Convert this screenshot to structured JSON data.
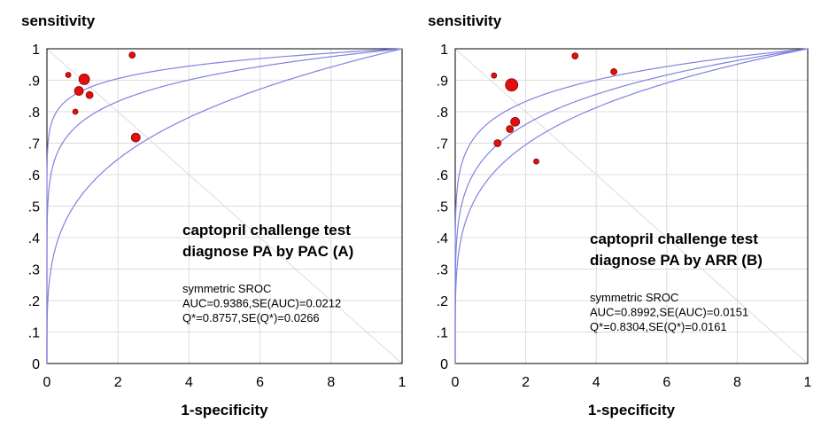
{
  "colors": {
    "curve": "#8080e0",
    "point": "#e01010",
    "point_stroke": "#900000",
    "grid": "#dcdcdc",
    "frame": "#000000"
  },
  "chart_data": [
    {
      "type": "scatter",
      "ylabel": "sensitivity",
      "xlabel": "1-specificity",
      "ylim": [
        0,
        1
      ],
      "y_ticks": [
        "0",
        ".1",
        ".2",
        ".3",
        ".4",
        ".5",
        ".6",
        ".7",
        ".8",
        ".9",
        "1"
      ],
      "x_ticks": [
        "0",
        "2",
        "4",
        "6",
        "8",
        "1"
      ],
      "grid": true,
      "annotation": {
        "title_lines": [
          "captopril challenge test",
          "diagnose PA by PAC (A)"
        ],
        "stats_lines": [
          "symmetric SROC",
          "AUC=0.9386,SE(AUC)=0.0212",
          "Q*=0.8757,SE(Q*)=0.0266"
        ]
      },
      "points": [
        {
          "x": 0.06,
          "y": 0.917,
          "size": 3
        },
        {
          "x": 0.08,
          "y": 0.8,
          "size": 3
        },
        {
          "x": 0.09,
          "y": 0.866,
          "size": 5
        },
        {
          "x": 0.105,
          "y": 0.903,
          "size": 6
        },
        {
          "x": 0.12,
          "y": 0.853,
          "size": 4
        },
        {
          "x": 0.24,
          "y": 0.98,
          "size": 3.5
        },
        {
          "x": 0.25,
          "y": 0.718,
          "size": 5
        }
      ]
    },
    {
      "type": "scatter",
      "ylabel": "sensitivity",
      "xlabel": "1-specificity",
      "ylim": [
        0,
        1
      ],
      "y_ticks": [
        "0",
        ".1",
        ".2",
        ".3",
        ".4",
        ".5",
        ".6",
        ".7",
        ".8",
        ".9",
        "1"
      ],
      "x_ticks": [
        "0",
        "2",
        "4",
        "6",
        "8",
        "1"
      ],
      "grid": true,
      "annotation": {
        "title_lines": [
          "captopril challenge test",
          "diagnose PA by ARR (B)"
        ],
        "stats_lines": [
          "symmetric SROC",
          "AUC=0.8992,SE(AUC)=0.0151",
          "Q*=0.8304,SE(Q*)=0.0161"
        ]
      },
      "points": [
        {
          "x": 0.11,
          "y": 0.915,
          "size": 3
        },
        {
          "x": 0.12,
          "y": 0.7,
          "size": 4
        },
        {
          "x": 0.155,
          "y": 0.745,
          "size": 4
        },
        {
          "x": 0.16,
          "y": 0.885,
          "size": 7
        },
        {
          "x": 0.17,
          "y": 0.768,
          "size": 5
        },
        {
          "x": 0.23,
          "y": 0.642,
          "size": 3
        },
        {
          "x": 0.34,
          "y": 0.977,
          "size": 3.5
        },
        {
          "x": 0.45,
          "y": 0.927,
          "size": 3.5
        }
      ]
    }
  ]
}
